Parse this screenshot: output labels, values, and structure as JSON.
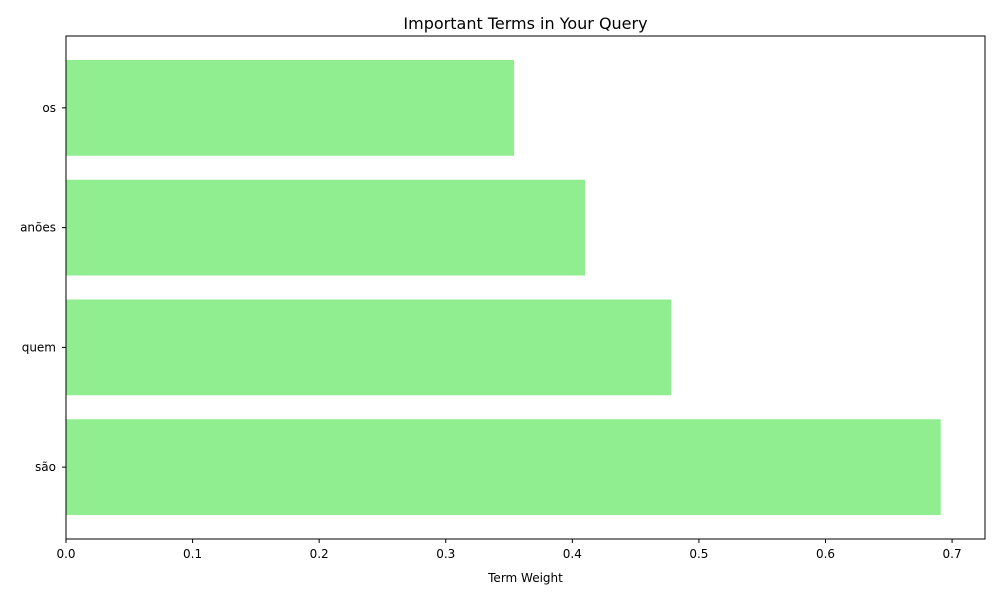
{
  "chart_data": {
    "type": "bar",
    "orientation": "horizontal",
    "title": "Important Terms in Your Query",
    "xlabel": "Term Weight",
    "ylabel": "",
    "categories": [
      "são",
      "quem",
      "anões",
      "os"
    ],
    "values": [
      0.691,
      0.478,
      0.41,
      0.354
    ],
    "xlim": [
      0,
      0.726
    ],
    "xticks": [
      0.0,
      0.1,
      0.2,
      0.3,
      0.4,
      0.5,
      0.6,
      0.7
    ],
    "xtick_labels": [
      "0.0",
      "0.1",
      "0.2",
      "0.3",
      "0.4",
      "0.5",
      "0.6",
      "0.7"
    ],
    "bar_color": "#90ee90",
    "grid": false,
    "legend": false
  }
}
